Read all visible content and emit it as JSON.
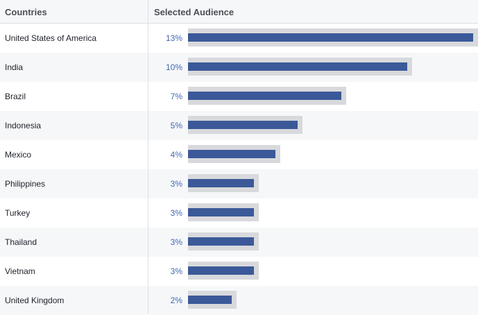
{
  "header": {
    "countries_label": "Countries",
    "audience_label": "Selected Audience"
  },
  "colors": {
    "bar": "#3b5998",
    "bar_bg": "#d8d9dc",
    "percent_text": "#4267b2",
    "row_alt": "#f6f7f9"
  },
  "rows": [
    {
      "country": "United States of America",
      "percent": "13%",
      "value": 13
    },
    {
      "country": "India",
      "percent": "10%",
      "value": 10
    },
    {
      "country": "Brazil",
      "percent": "7%",
      "value": 7
    },
    {
      "country": "Indonesia",
      "percent": "5%",
      "value": 5
    },
    {
      "country": "Mexico",
      "percent": "4%",
      "value": 4
    },
    {
      "country": "Philippines",
      "percent": "3%",
      "value": 3
    },
    {
      "country": "Turkey",
      "percent": "3%",
      "value": 3
    },
    {
      "country": "Thailand",
      "percent": "3%",
      "value": 3
    },
    {
      "country": "Vietnam",
      "percent": "3%",
      "value": 3
    },
    {
      "country": "United Kingdom",
      "percent": "2%",
      "value": 2
    }
  ]
}
